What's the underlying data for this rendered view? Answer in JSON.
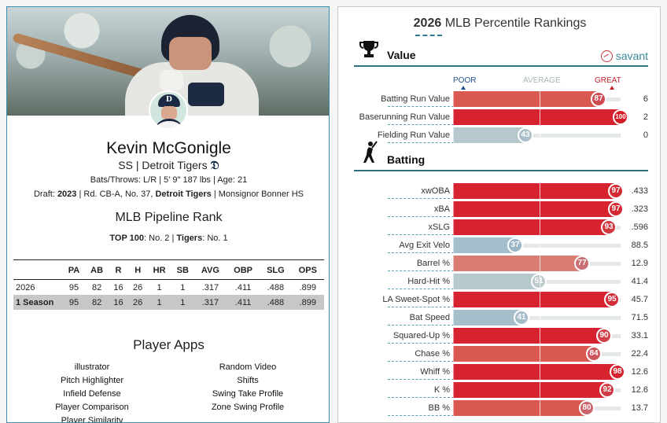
{
  "player": {
    "name": "Kevin McGonigle",
    "position_team": "SS | Detroit Tigers",
    "bio": "Bats/Throws: L/R | 5' 9\" 187 lbs | Age: 21",
    "draft_prefix": "Draft: ",
    "draft_year": "2023",
    "draft_mid": " | Rd. CB-A, No. 37, ",
    "draft_team": "Detroit Tigers",
    "draft_suffix": " | Monsignor Bonner HS"
  },
  "pipeline": {
    "title": "MLB Pipeline Rank",
    "top100_label": "TOP 100",
    "top100_value": ": No. 2 | ",
    "team_label": "Tigers",
    "team_value": ": No. 1"
  },
  "stats": {
    "headers": [
      "PA",
      "AB",
      "R",
      "H",
      "HR",
      "SB",
      "AVG",
      "OBP",
      "SLG",
      "OPS"
    ],
    "rows": [
      {
        "season": "2026",
        "values": [
          "95",
          "82",
          "16",
          "26",
          "1",
          "1",
          ".317",
          ".411",
          ".488",
          ".899"
        ]
      },
      {
        "season": "1 Season",
        "values": [
          "95",
          "82",
          "16",
          "26",
          "1",
          "1",
          ".317",
          ".411",
          ".488",
          ".899"
        ]
      }
    ]
  },
  "apps": {
    "title": "Player Apps",
    "left": [
      "illustrator",
      "Pitch Highlighter",
      "Infield Defense",
      "Player Comparison",
      "Player Similarity"
    ],
    "right": [
      "Random Video",
      "Shifts",
      "Swing Take Profile",
      "Zone Swing Profile"
    ]
  },
  "rankings": {
    "title_year": "2026",
    "title_rest": " MLB Percentile Rankings",
    "scale": {
      "poor": "POOR",
      "average": "AVERAGE",
      "great": "GREAT"
    },
    "savant_label": "savant",
    "sections": [
      {
        "label": "Value",
        "icon": "trophy-icon",
        "metrics": [
          {
            "label": "Batting Run Value",
            "pct": 87,
            "value": "6"
          },
          {
            "label": "Baserunning Run Value",
            "pct": 100,
            "value": "2"
          },
          {
            "label": "Fielding Run Value",
            "pct": 43,
            "value": "0"
          }
        ]
      },
      {
        "label": "Batting",
        "icon": "batter-icon",
        "metrics": [
          {
            "label": "xwOBA",
            "pct": 97,
            "value": ".433"
          },
          {
            "label": "xBA",
            "pct": 97,
            "value": ".323"
          },
          {
            "label": "xSLG",
            "pct": 93,
            "value": ".596"
          },
          {
            "label": "Avg Exit Velo",
            "pct": 37,
            "value": "88.5"
          },
          {
            "label": "Barrel %",
            "pct": 77,
            "value": "12.9"
          },
          {
            "label": "Hard-Hit %",
            "pct": 51,
            "value": "41.4"
          },
          {
            "label": "LA Sweet-Spot %",
            "pct": 95,
            "value": "45.7"
          },
          {
            "label": "Bat Speed",
            "pct": 41,
            "value": "71.5"
          },
          {
            "label": "Squared-Up %",
            "pct": 90,
            "value": "33.1"
          },
          {
            "label": "Chase %",
            "pct": 84,
            "value": "22.4"
          },
          {
            "label": "Whiff %",
            "pct": 98,
            "value": "12.6"
          },
          {
            "label": "K %",
            "pct": 92,
            "value": "12.6"
          },
          {
            "label": "BB %",
            "pct": 80,
            "value": "13.7"
          }
        ]
      }
    ]
  }
}
